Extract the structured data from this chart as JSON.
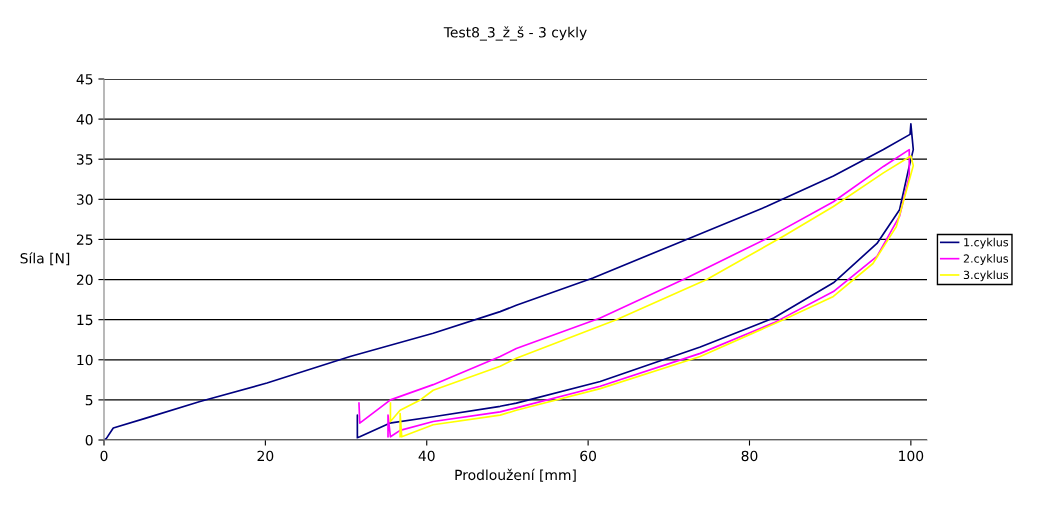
{
  "chart_data": {
    "type": "line",
    "title": "Test8_3_ž_š - 3 cykly",
    "xlabel": "Prodloužení [mm]",
    "ylabel": "Síla [N]",
    "xlim": [
      0,
      102
    ],
    "xticks": [
      0,
      20,
      40,
      60,
      80,
      100
    ],
    "ylim": [
      0,
      45
    ],
    "yticks": [
      0,
      5,
      10,
      15,
      20,
      25,
      30,
      35,
      40,
      45
    ],
    "grid": "y",
    "legend": "right",
    "marker": "none",
    "line_style": "solid",
    "series": [
      {
        "name": "1.cyklus",
        "color": "#000080",
        "x": [
          0,
          0.3,
          1.15,
          5.1,
          11.9,
          20.2,
          30.5,
          40.8,
          49.1,
          51.1,
          60.6,
          72.2,
          82.1,
          90.4,
          96.6,
          99.9,
          100,
          100.3,
          99.7,
          98.6,
          95.8,
          90.4,
          83.0,
          73.9,
          61.5,
          51.1,
          49.1,
          40.8,
          35.4,
          31.7,
          31.4,
          31.4,
          31.4
        ],
        "values": [
          0,
          0.2,
          1.5,
          2.7,
          4.8,
          7.1,
          10.4,
          13.3,
          16.0,
          16.8,
          20.2,
          25.0,
          29.1,
          32.9,
          36.2,
          38.1,
          39.4,
          36.2,
          33.7,
          28.7,
          24.5,
          19.6,
          15.2,
          11.6,
          7.3,
          4.6,
          4.2,
          2.9,
          2.1,
          0.4,
          0.3,
          3.1,
          0.3
        ]
      },
      {
        "name": "2.cyklus",
        "color": "#ff00ff",
        "x": [
          31.6,
          31.7,
          35.5,
          40.8,
          49.1,
          51.1,
          61.5,
          72.2,
          82.1,
          90.4,
          96.6,
          99.8,
          99.8,
          98.6,
          95.8,
          90.4,
          83.0,
          73.9,
          61.5,
          51.1,
          49.1,
          40.8,
          36.7,
          35.5,
          35.2,
          35.2
        ],
        "values": [
          4.6,
          2.1,
          5.0,
          6.9,
          10.4,
          11.4,
          15.2,
          20.2,
          25.1,
          29.7,
          34.1,
          36.2,
          32.9,
          27.9,
          22.9,
          18.5,
          14.6,
          10.8,
          6.7,
          4.0,
          3.5,
          2.3,
          1.2,
          0.4,
          3.1,
          0.4
        ]
      },
      {
        "name": "3.cyklus",
        "color": "#ffff00",
        "x": [
          35.5,
          35.5,
          36.7,
          39.2,
          40.8,
          49.1,
          51.1,
          63.5,
          74.7,
          84.2,
          90.4,
          96.6,
          100,
          100.3,
          99.7,
          98.2,
          95.3,
          90.4,
          84.2,
          73.9,
          61.5,
          51.1,
          49.1,
          40.8,
          36.9,
          36.7,
          36.7
        ],
        "values": [
          4.6,
          2.3,
          3.7,
          5.0,
          6.2,
          9.2,
          10.2,
          15.0,
          20.0,
          25.4,
          29.1,
          33.3,
          35.4,
          34.2,
          32.0,
          26.6,
          22.0,
          17.9,
          15.0,
          10.4,
          6.4,
          3.7,
          3.1,
          1.9,
          0.4,
          3.3,
          0.4
        ]
      }
    ]
  }
}
